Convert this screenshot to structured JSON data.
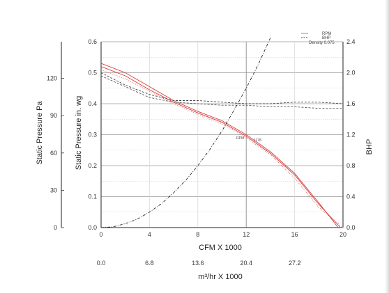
{
  "chart_data": {
    "type": "line",
    "title": "",
    "xlabel": "CFM X 1000",
    "xlabel2": "m³/hr X 1000",
    "ylabel_left_inner": "Static Pressure in. wg",
    "ylabel_left_outer": "Static Pressure Pa",
    "ylabel_right": "BHP",
    "xlim": [
      0,
      20
    ],
    "ylim": [
      0,
      0.6
    ],
    "y2lim": [
      0,
      2.4
    ],
    "xticks": [
      "0",
      "4",
      "8",
      "12",
      "16",
      "20"
    ],
    "xticks2": [
      "0.0",
      "6.8",
      "13.6",
      "20.4",
      "27.2"
    ],
    "yticks": [
      "0.0",
      "0.1",
      "0.2",
      "0.3",
      "0.4",
      "0.5",
      "0.6"
    ],
    "y2ticks": [
      "0.0",
      "0.4",
      "0.8",
      "1.2",
      "1.6",
      "2.0",
      "2.4"
    ],
    "yticks_pa": [
      "0",
      "30",
      "60",
      "90",
      "120"
    ],
    "grid": true,
    "legend": {
      "position": "top-right",
      "entries": [
        "RPM",
        "BHP",
        "Density 0.075"
      ]
    },
    "annotations": [
      "RPM",
      "1178"
    ],
    "series": [
      {
        "color": "#d43a3a",
        "style": "solid",
        "axis": "left",
        "x": [
          0,
          2,
          4,
          6,
          8,
          10,
          12,
          14,
          16,
          18,
          19.6
        ],
        "y": [
          0.53,
          0.5,
          0.455,
          0.41,
          0.375,
          0.345,
          0.3,
          0.245,
          0.175,
          0.08,
          0.0
        ]
      },
      {
        "color": "#d43a3a",
        "style": "solid",
        "axis": "left",
        "x": [
          0,
          2,
          4,
          6,
          8,
          10,
          12,
          14,
          16,
          18,
          19.8
        ],
        "y": [
          0.52,
          0.49,
          0.445,
          0.405,
          0.37,
          0.34,
          0.295,
          0.24,
          0.17,
          0.075,
          0.0
        ]
      },
      {
        "color": "#e57070",
        "style": "dotted",
        "axis": "left",
        "x": [
          0,
          2,
          4,
          6,
          8,
          10,
          12,
          14,
          16,
          18,
          20
        ],
        "y": [
          0.51,
          0.48,
          0.44,
          0.4,
          0.365,
          0.335,
          0.29,
          0.235,
          0.16,
          0.065,
          0.0
        ]
      },
      {
        "color": "#444444",
        "style": "dashed",
        "axis": "left",
        "x": [
          0,
          2,
          4,
          6,
          8,
          10,
          12,
          14,
          16,
          18,
          20
        ],
        "y": [
          0.5,
          0.46,
          0.43,
          0.41,
          0.41,
          0.405,
          0.4,
          0.4,
          0.405,
          0.405,
          0.4
        ]
      },
      {
        "color": "#555555",
        "style": "dashed",
        "axis": "left",
        "x": [
          0,
          2,
          4,
          6,
          8,
          10,
          12,
          14,
          16,
          18,
          20
        ],
        "y": [
          0.49,
          0.455,
          0.42,
          0.405,
          0.4,
          0.395,
          0.395,
          0.39,
          0.39,
          0.385,
          0.385
        ]
      },
      {
        "color": "#222222",
        "style": "dashdot",
        "axis": "right",
        "x": [
          0,
          1,
          2,
          3,
          4,
          5,
          6,
          7,
          8,
          9,
          10,
          11,
          12,
          13,
          14
        ],
        "y": [
          0.0,
          0.01,
          0.05,
          0.11,
          0.2,
          0.31,
          0.45,
          0.61,
          0.8,
          1.01,
          1.25,
          1.52,
          1.8,
          2.11,
          2.45
        ]
      }
    ]
  }
}
